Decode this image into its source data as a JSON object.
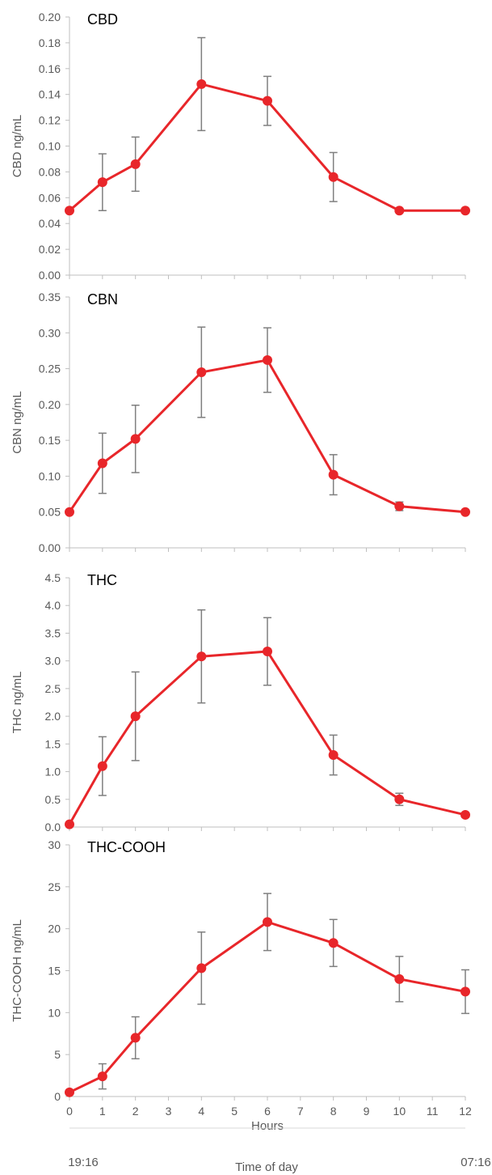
{
  "chart_data": [
    {
      "type": "line",
      "title": "CBD",
      "ylabel": "CBD ng/mL",
      "ylim": [
        0,
        0.2
      ],
      "yticks": [
        "0.00",
        "0.02",
        "0.04",
        "0.06",
        "0.08",
        "0.10",
        "0.12",
        "0.14",
        "0.16",
        "0.18",
        "0.20"
      ],
      "x": [
        0,
        1,
        2,
        4,
        6,
        8,
        10,
        12
      ],
      "series": [
        {
          "values": [
            0.05,
            0.072,
            0.086,
            0.148,
            0.135,
            0.076,
            0.05,
            0.05
          ],
          "error": [
            0,
            0.022,
            0.021,
            0.036,
            0.019,
            0.019,
            0,
            0
          ]
        }
      ]
    },
    {
      "type": "line",
      "title": "CBN",
      "ylabel": "CBN ng/mL",
      "ylim": [
        0,
        0.35
      ],
      "yticks": [
        "0.00",
        "0.05",
        "0.10",
        "0.15",
        "0.20",
        "0.25",
        "0.30",
        "0.35"
      ],
      "x": [
        0,
        1,
        2,
        4,
        6,
        8,
        10,
        12
      ],
      "series": [
        {
          "values": [
            0.05,
            0.118,
            0.152,
            0.245,
            0.262,
            0.102,
            0.058,
            0.05
          ],
          "error": [
            0,
            0.042,
            0.047,
            0.063,
            0.045,
            0.028,
            0.006,
            0
          ]
        }
      ]
    },
    {
      "type": "line",
      "title": "THC",
      "ylabel": "THC ng/mL",
      "ylim": [
        0,
        4.5
      ],
      "yticks": [
        "0.0",
        "0.5",
        "1.0",
        "1.5",
        "2.0",
        "2.5",
        "3.0",
        "3.5",
        "4.0",
        "4.5"
      ],
      "x": [
        0,
        1,
        2,
        4,
        6,
        8,
        10,
        12
      ],
      "series": [
        {
          "values": [
            0.05,
            1.1,
            2.0,
            3.08,
            3.17,
            1.3,
            0.5,
            0.22
          ],
          "error": [
            0,
            0.53,
            0.8,
            0.84,
            0.61,
            0.36,
            0.11,
            0
          ]
        }
      ]
    },
    {
      "type": "line",
      "title": "THC-COOH",
      "ylabel": "THC-COOH ng/mL",
      "xlabel": "Hours",
      "ylim": [
        0,
        30
      ],
      "yticks": [
        "0",
        "5",
        "10",
        "15",
        "20",
        "25",
        "30"
      ],
      "xticks": [
        "0",
        "1",
        "2",
        "3",
        "4",
        "5",
        "6",
        "7",
        "8",
        "9",
        "10",
        "11",
        "12"
      ],
      "x": [
        0,
        1,
        2,
        4,
        6,
        8,
        10,
        12
      ],
      "series": [
        {
          "values": [
            0.5,
            2.4,
            7.0,
            15.3,
            20.8,
            18.3,
            14.0,
            12.5
          ],
          "error": [
            0,
            1.5,
            2.5,
            4.3,
            3.4,
            2.8,
            2.7,
            2.6
          ]
        }
      ]
    }
  ],
  "footer": {
    "start_time": "19:16",
    "end_time": "07:16",
    "time_axis_label": "Time of day"
  },
  "colors": {
    "line": "#e8262a",
    "marker": "#e8262a",
    "error_bar": "#7f7f7f",
    "axis": "#bfbfbf",
    "text": "#595959"
  }
}
